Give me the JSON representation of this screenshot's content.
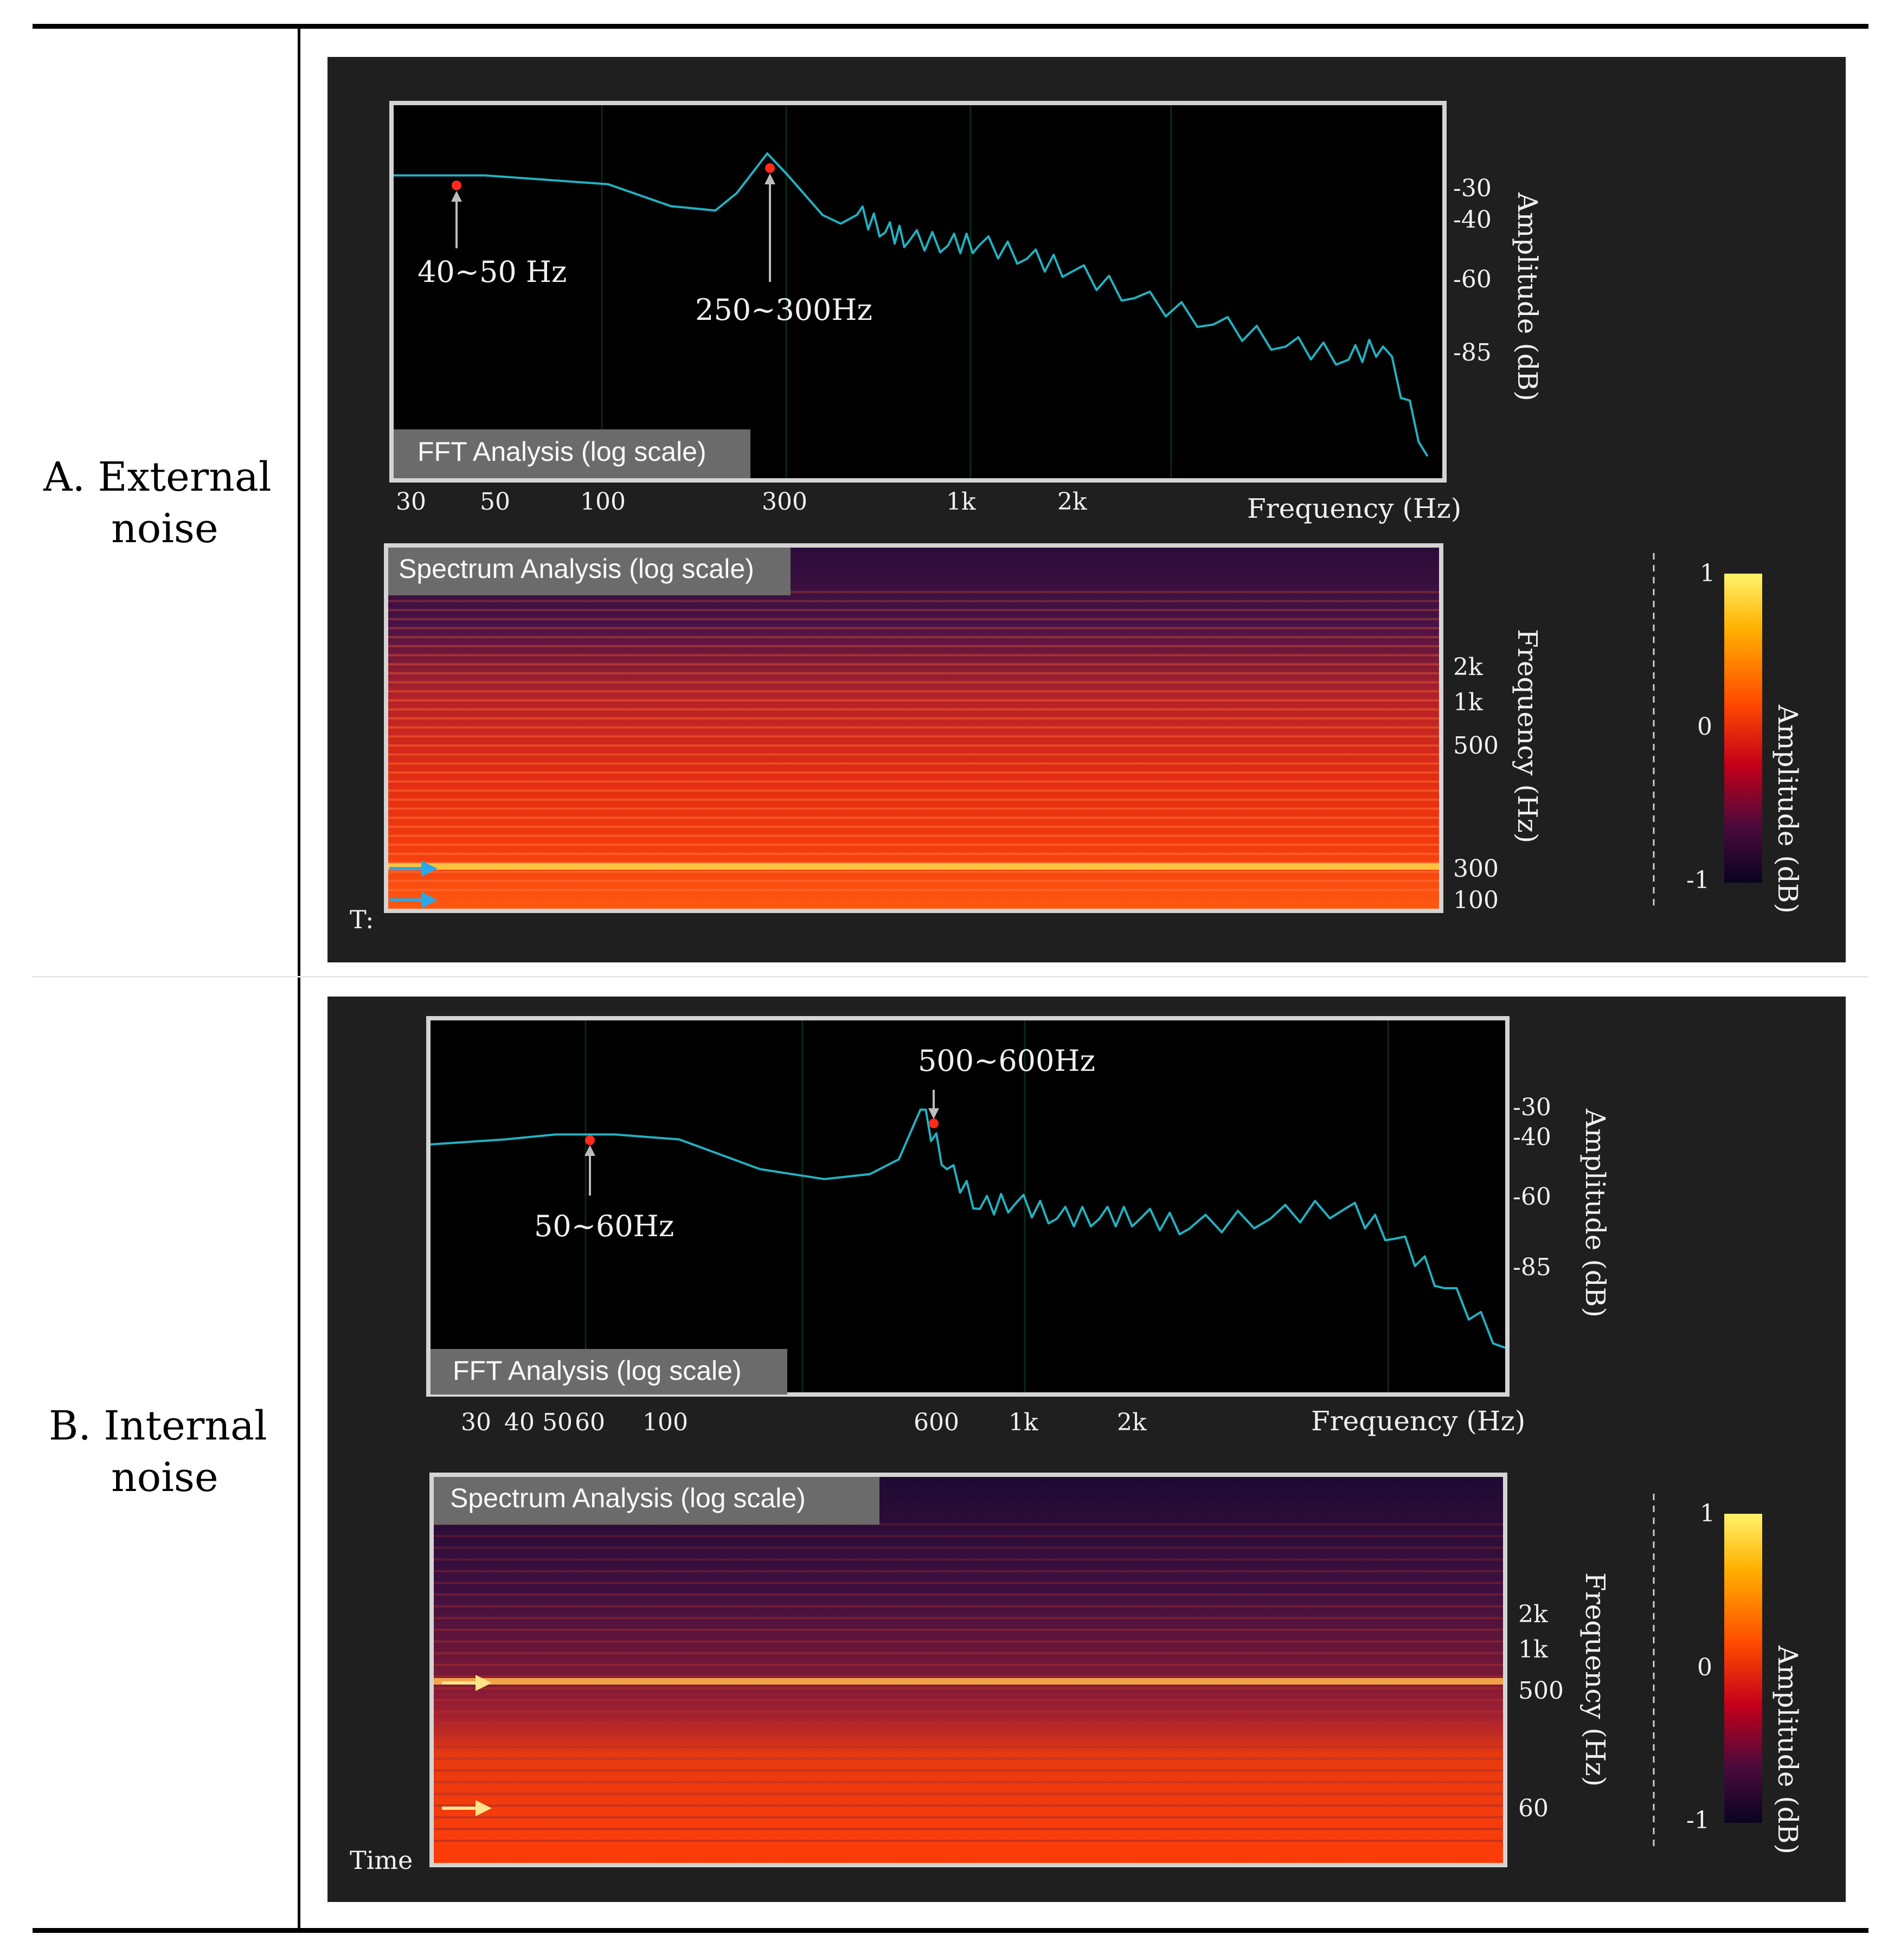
{
  "rows": [
    {
      "label_line1": "A.  External",
      "label_line2": "noise",
      "fft": {
        "title": "FFT Analysis (log scale)",
        "x_label": "Frequency (Hz)",
        "y_label": "Amplitude (dB)",
        "y_ticks": [
          "-30",
          "-40",
          "-60",
          "-85"
        ],
        "x_ticks": [
          "30",
          "50",
          "100",
          "300",
          "1k",
          "2k"
        ],
        "peaks": [
          "40~50 Hz",
          "250~300Hz"
        ]
      },
      "spectrum": {
        "title": "Spectrum Analysis (log scale)",
        "y_label": "Frequency (Hz)",
        "y_ticks": [
          "2k",
          "1k",
          "500",
          "300",
          "100"
        ],
        "time_label": "T:",
        "arrow_color": "#29a8e8"
      },
      "colorbar": {
        "label": "Amplitude (dB)",
        "ticks": [
          "1",
          "0",
          "-1"
        ]
      }
    },
    {
      "label_line1": "B.  Internal",
      "label_line2": "noise",
      "fft": {
        "title": "FFT Analysis (log scale)",
        "x_label": "Frequency (Hz)",
        "y_label": "Amplitude (dB)",
        "y_ticks": [
          "-30",
          "-40",
          "-60",
          "-85"
        ],
        "x_ticks": [
          "30",
          "40",
          "50",
          "60",
          "100",
          "600",
          "1k",
          "2k"
        ],
        "peaks": [
          "50~60Hz",
          "500~600Hz"
        ]
      },
      "spectrum": {
        "title": "Spectrum Analysis (log scale)",
        "y_label": "Frequency (Hz)",
        "y_ticks": [
          "2k",
          "1k",
          "500",
          "60"
        ],
        "time_label": "Time",
        "arrow_color": "#ffe38a"
      },
      "colorbar": {
        "label": "Amplitude (dB)",
        "ticks": [
          "1",
          "0",
          "-1"
        ]
      }
    }
  ],
  "colors": {
    "panel_bg": "#1f1f1f",
    "plot_bg": "#000000",
    "fft_line": "#21b3c4",
    "peak_marker": "#ff2a1a",
    "frame": "#d4d4d4",
    "title_box": "#6b6b6b"
  },
  "chart_data": [
    {
      "type": "line",
      "title": "FFT Analysis (log scale)",
      "xlabel": "Frequency (Hz)",
      "ylabel": "Amplitude (dB)",
      "x_scale": "log",
      "xlim": [
        25,
        22000
      ],
      "ylim": [
        -105,
        -20
      ],
      "series": [
        {
          "x": [
            25,
            45,
            100,
            150,
            200,
            230,
            280,
            320,
            400,
            450,
            500,
            600,
            700,
            900,
            1100,
            1500,
            2000,
            3000,
            5000,
            8000,
            12000,
            15000,
            20000
          ],
          "y": [
            -36,
            -36,
            -38,
            -43,
            -44,
            -40,
            -31,
            -36,
            -45,
            -47,
            -45,
            -49,
            -51,
            -52,
            -52,
            -55,
            -58,
            -64,
            -70,
            -75,
            -78,
            -75,
            -100
          ]
        }
      ],
      "annotations": [
        {
          "text": "40~50 Hz",
          "x": 45,
          "y": -36
        },
        {
          "text": "250~300Hz",
          "x": 280,
          "y": -31
        }
      ]
    },
    {
      "type": "heatmap",
      "title": "Spectrum Analysis (log scale)",
      "ylabel": "Frequency (Hz)",
      "y_scale": "log",
      "y_ticks": [
        2000,
        1000,
        500,
        300,
        100
      ],
      "colorbar": {
        "label": "Amplitude (dB)",
        "range": [
          -1,
          1
        ]
      },
      "highlighted_bands_hz": [
        300,
        100
      ]
    },
    {
      "type": "line",
      "title": "FFT Analysis (log scale)",
      "xlabel": "Frequency (Hz)",
      "ylabel": "Amplitude (dB)",
      "x_scale": "log",
      "xlim": [
        25,
        22000
      ],
      "ylim": [
        -95,
        -20
      ],
      "series": [
        {
          "x": [
            25,
            40,
            55,
            80,
            120,
            200,
            300,
            400,
            480,
            550,
            650,
            800,
            1000,
            1300,
            1700,
            2200,
            3000,
            5000,
            8000,
            11000,
            15000,
            22000
          ],
          "y": [
            -45,
            -44,
            -43,
            -43,
            -44,
            -50,
            -52,
            -51,
            -48,
            -38,
            -50,
            -58,
            -57,
            -60,
            -60,
            -60,
            -62,
            -60,
            -58,
            -64,
            -74,
            -86
          ]
        }
      ],
      "annotations": [
        {
          "text": "50~60Hz",
          "x": 55,
          "y": -43
        },
        {
          "text": "500~600Hz",
          "x": 550,
          "y": -38
        }
      ]
    },
    {
      "type": "heatmap",
      "title": "Spectrum Analysis (log scale)",
      "ylabel": "Frequency (Hz)",
      "y_scale": "log",
      "y_ticks": [
        2000,
        1000,
        500,
        60
      ],
      "colorbar": {
        "label": "Amplitude (dB)",
        "range": [
          -1,
          1
        ]
      },
      "highlighted_bands_hz": [
        500,
        60
      ]
    }
  ]
}
